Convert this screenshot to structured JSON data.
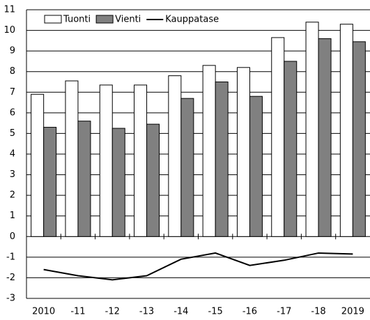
{
  "chart_data": {
    "type": "bar",
    "categories": [
      "2010",
      "-11",
      "-12",
      "-13",
      "-14",
      "-15",
      "-16",
      "-17",
      "-18",
      "2019"
    ],
    "series": [
      {
        "name": "Tuonti",
        "type": "bar",
        "color": "#ffffff",
        "values": [
          6.9,
          7.55,
          7.35,
          7.35,
          7.8,
          8.3,
          8.2,
          9.65,
          10.4,
          10.3
        ]
      },
      {
        "name": "Vienti",
        "type": "bar",
        "color": "#808080",
        "values": [
          5.3,
          5.6,
          5.25,
          5.45,
          6.7,
          7.5,
          6.8,
          8.5,
          9.6,
          9.45
        ]
      },
      {
        "name": "Kauppatase",
        "type": "line",
        "color": "#000000",
        "values": [
          -1.6,
          -1.9,
          -2.1,
          -1.9,
          -1.1,
          -0.8,
          -1.4,
          -1.15,
          -0.8,
          -0.85
        ]
      }
    ],
    "ylim": [
      -3,
      11
    ],
    "yticks": [
      -3,
      -2,
      -1,
      0,
      1,
      2,
      3,
      4,
      5,
      6,
      7,
      8,
      9,
      10,
      11
    ],
    "grid": true,
    "legend": "upper left"
  }
}
